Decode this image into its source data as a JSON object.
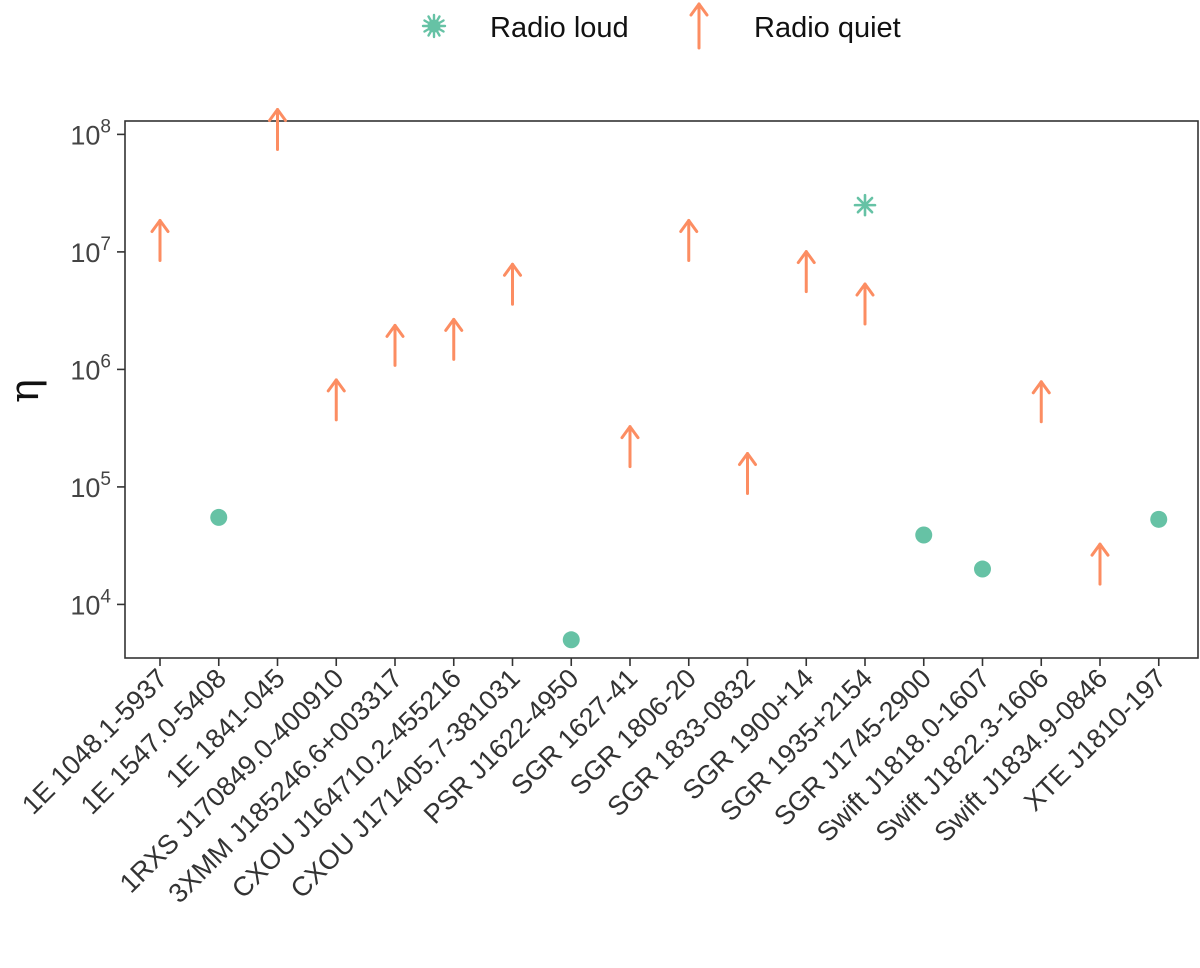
{
  "chart_data": {
    "type": "scatter",
    "ylabel": "η",
    "y_scale": "log",
    "ylim": [
      3500,
      130000000
    ],
    "y_ticks": [
      {
        "value": 10000,
        "base": "10",
        "exp": "4"
      },
      {
        "value": 100000,
        "base": "10",
        "exp": "5"
      },
      {
        "value": 1000000,
        "base": "10",
        "exp": "6"
      },
      {
        "value": 10000000,
        "base": "10",
        "exp": "7"
      },
      {
        "value": 100000000,
        "base": "10",
        "exp": "8"
      }
    ],
    "grid": false,
    "legend_position": "top",
    "categories": [
      "1E 1048.1-5937",
      "1E 1547.0-5408",
      "1E 1841-045",
      "1RXS J170849.0-400910",
      "3XMM J185246.6+003317",
      "CXOU J164710.2-455216",
      "CXOU J171405.7-381031",
      "PSR J1622-4950",
      "SGR 1627-41",
      "SGR 1806-20",
      "SGR 1833-0832",
      "SGR 1900+14",
      "SGR 1935+2154",
      "SGR J1745-2900",
      "Swift J1818.0-1607",
      "Swift J1822.3-1606",
      "Swift J1834.9-0846",
      "XTE J1810-197"
    ],
    "series": [
      {
        "name": "Radio loud",
        "color": "#66c2a5",
        "marker": "circle",
        "points": [
          {
            "category": "1E 1547.0-5408",
            "value": 55000
          },
          {
            "category": "PSR J1622-4950",
            "value": 5000
          },
          {
            "category": "SGR J1745-2900",
            "value": 39000
          },
          {
            "category": "Swift J1818.0-1607",
            "value": 20000
          },
          {
            "category": "XTE J1810-197",
            "value": 53000
          }
        ]
      },
      {
        "name": "Radio loud",
        "color": "#66c2a5",
        "marker": "asterisk",
        "points": [
          {
            "category": "SGR 1935+2154",
            "value": 25000000
          }
        ]
      },
      {
        "name": "Radio quiet",
        "color": "#fc8d62",
        "marker": "arrow-up",
        "points": [
          {
            "category": "1E 1048.1-5937",
            "value": 12500000
          },
          {
            "category": "1E 1841-045",
            "value": 110000000
          },
          {
            "category": "1RXS J170849.0-400910",
            "value": 550000
          },
          {
            "category": "3XMM J185246.6+003317",
            "value": 1600000
          },
          {
            "category": "CXOU J164710.2-455216",
            "value": 1800000
          },
          {
            "category": "CXOU J171405.7-381031",
            "value": 5300000
          },
          {
            "category": "SGR 1627-41",
            "value": 220000
          },
          {
            "category": "SGR 1806-20",
            "value": 12500000
          },
          {
            "category": "SGR 1833-0832",
            "value": 130000
          },
          {
            "category": "SGR 1900+14",
            "value": 6800000
          },
          {
            "category": "SGR 1935+2154",
            "value": 3600000
          },
          {
            "category": "Swift J1822.3-1606",
            "value": 530000
          },
          {
            "category": "Swift J1834.9-0846",
            "value": 22000
          }
        ]
      }
    ],
    "legend": [
      {
        "label": "Radio loud",
        "color": "#66c2a5",
        "marker": "asterisk"
      },
      {
        "label": "Radio quiet",
        "color": "#fc8d62",
        "marker": "arrow-up"
      }
    ]
  }
}
